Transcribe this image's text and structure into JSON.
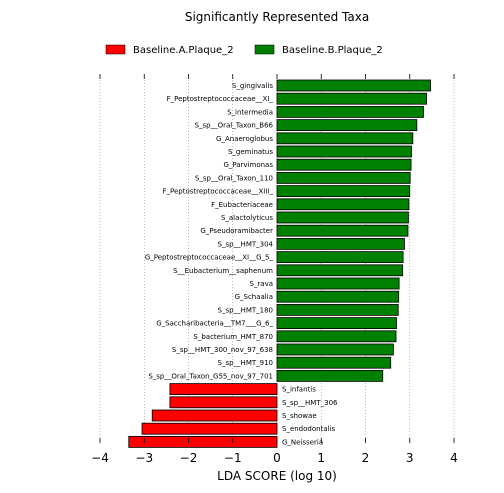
{
  "chart_data": {
    "type": "bar",
    "orientation": "horizontal",
    "title": "Significantly Represented Taxa",
    "xlabel": "LDA SCORE (log 10)",
    "xlim": [
      -4,
      4
    ],
    "xticks": [
      "−4",
      "−3",
      "−2",
      "−1",
      "0",
      "1",
      "2",
      "3",
      "4"
    ],
    "grid": "vertical dotted",
    "legend_position": "top",
    "series": [
      {
        "name": "Baseline.A.Plaque_2",
        "color": "#ff0000"
      },
      {
        "name": "Baseline.B.Plaque_2",
        "color": "#008000"
      }
    ],
    "bars": [
      {
        "label": "S_gingivalis",
        "value": 3.47,
        "group": 1
      },
      {
        "label": "F_Peptostreptococcaceae__XI_",
        "value": 3.38,
        "group": 1
      },
      {
        "label": "S_intermedia",
        "value": 3.31,
        "group": 1
      },
      {
        "label": "S_sp__Oral_Taxon_B66",
        "value": 3.16,
        "group": 1
      },
      {
        "label": "G_Anaeroglobus",
        "value": 3.07,
        "group": 1
      },
      {
        "label": "S_geminatus",
        "value": 3.04,
        "group": 1
      },
      {
        "label": "G_Parvimonas",
        "value": 3.03,
        "group": 1
      },
      {
        "label": "S_sp__Oral_Taxon_110",
        "value": 3.01,
        "group": 1
      },
      {
        "label": "F_Peptostreptococcaceae__XIII_",
        "value": 3.0,
        "group": 1
      },
      {
        "label": "F_Eubacteriaceae",
        "value": 2.98,
        "group": 1
      },
      {
        "label": "S_alactolyticus",
        "value": 2.97,
        "group": 1
      },
      {
        "label": "G_Pseudoramibacter",
        "value": 2.96,
        "group": 1
      },
      {
        "label": "S_sp__HMT_304",
        "value": 2.88,
        "group": 1
      },
      {
        "label": "G_Peptostreptococcaceae__XI__G_5_",
        "value": 2.85,
        "group": 1
      },
      {
        "label": "S__Eubacterium__saphenum",
        "value": 2.84,
        "group": 1
      },
      {
        "label": "S_rava",
        "value": 2.76,
        "group": 1
      },
      {
        "label": "G_Schaalia",
        "value": 2.75,
        "group": 1
      },
      {
        "label": "S_sp__HMT_180",
        "value": 2.74,
        "group": 1
      },
      {
        "label": "G_Saccharibacteria__TM7___G_6_",
        "value": 2.7,
        "group": 1
      },
      {
        "label": "S_bacterium_HMT_870",
        "value": 2.69,
        "group": 1
      },
      {
        "label": "S_sp__HMT_300_nov_97_638",
        "value": 2.63,
        "group": 1
      },
      {
        "label": "S_sp__HMT_910",
        "value": 2.57,
        "group": 1
      },
      {
        "label": "S_sp__Oral_Taxon_G55_nov_97_701",
        "value": 2.39,
        "group": 1
      },
      {
        "label": "S_infantis",
        "value": -2.42,
        "group": 0
      },
      {
        "label": "S_sp__HMT_306",
        "value": -2.42,
        "group": 0
      },
      {
        "label": "S_showae",
        "value": -2.82,
        "group": 0
      },
      {
        "label": "S_endodontalis",
        "value": -3.05,
        "group": 0
      },
      {
        "label": "G_Neisseria",
        "value": -3.35,
        "group": 0
      }
    ]
  }
}
